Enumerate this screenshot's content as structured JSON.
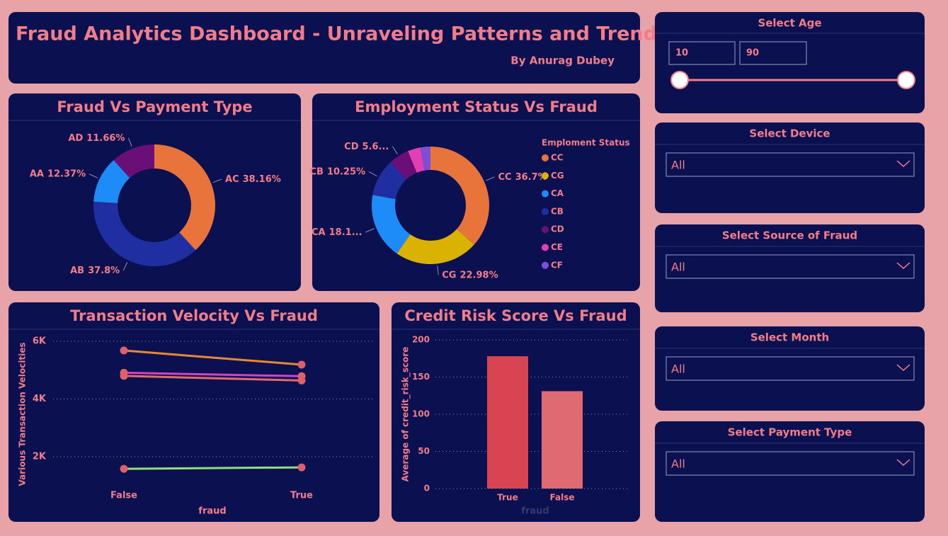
{
  "header": {
    "title": "Fraud Analytics Dashboard - Unraveling Patterns and Trends",
    "byline": "By Anurag Dubey"
  },
  "chart_data": [
    {
      "type": "pie",
      "title": "Fraud Vs Payment Type",
      "categories": [
        "AC",
        "AB",
        "AA",
        "AD"
      ],
      "values": [
        38.16,
        37.8,
        12.37,
        11.66
      ],
      "value_labels": [
        "38.16%",
        "37.8%",
        "12.37%",
        "11.66%"
      ],
      "colors": [
        "#e8743b",
        "#1f2ea0",
        "#1d8cf8",
        "#6b0f78"
      ]
    },
    {
      "type": "pie",
      "title": "Employment Status Vs Fraud",
      "legend_title": "Emploment Status",
      "legend": "right",
      "categories": [
        "CC",
        "CG",
        "CA",
        "CB",
        "CD",
        "CE",
        "CF"
      ],
      "values": [
        36.7,
        22.98,
        18.15,
        10.25,
        5.62,
        3.6,
        2.7
      ],
      "value_labels": [
        "36.7%",
        "22.98%",
        "18.1...",
        "10.25%",
        "5.6...",
        null,
        null
      ],
      "colors": [
        "#e8743b",
        "#d9b300",
        "#1d8cf8",
        "#1f2ea0",
        "#6b0f78",
        "#e23fb4",
        "#7b4fd6"
      ]
    },
    {
      "type": "line",
      "title": "Transaction Velocity Vs Fraud",
      "x_label": "fraud",
      "y_label": "Various Transaction Velocities",
      "categories": [
        "False",
        "True"
      ],
      "ylim": [
        1000,
        6000
      ],
      "yticks": [
        {
          "value": 2000,
          "label": "2K"
        },
        {
          "value": 4000,
          "label": "4K"
        },
        {
          "value": 6000,
          "label": "6K"
        }
      ],
      "grid": true,
      "marker_color": "#e0606a",
      "series": [
        {
          "color": "#e8892f",
          "values": [
            5680,
            5190
          ]
        },
        {
          "color": "#d63fc8",
          "values": [
            4910,
            4790
          ]
        },
        {
          "color": "#e06c6c",
          "values": [
            4800,
            4640
          ]
        },
        {
          "color": "#8fe07a",
          "values": [
            1580,
            1630
          ]
        }
      ]
    },
    {
      "type": "bar",
      "title": "Credit Risk Score Vs Fraud",
      "x_label": "fraud",
      "y_label": "Average of credit_risk_score",
      "categories": [
        "True",
        "False"
      ],
      "values": [
        178,
        131
      ],
      "colors": [
        "#d94452",
        "#e06a72"
      ],
      "ylim": [
        0,
        200
      ],
      "yticks": [
        0,
        50,
        100,
        150,
        200
      ],
      "grid": true
    }
  ],
  "slicers": {
    "age": {
      "title": "Select Age",
      "from": 10,
      "to": 90
    },
    "dropdowns": [
      {
        "title": "Select Device",
        "selection": "All"
      },
      {
        "title": "Select Source of Fraud",
        "selection": "All"
      },
      {
        "title": "Select Month",
        "selection": "All"
      },
      {
        "title": "Select Payment Type",
        "selection": "All"
      }
    ]
  }
}
